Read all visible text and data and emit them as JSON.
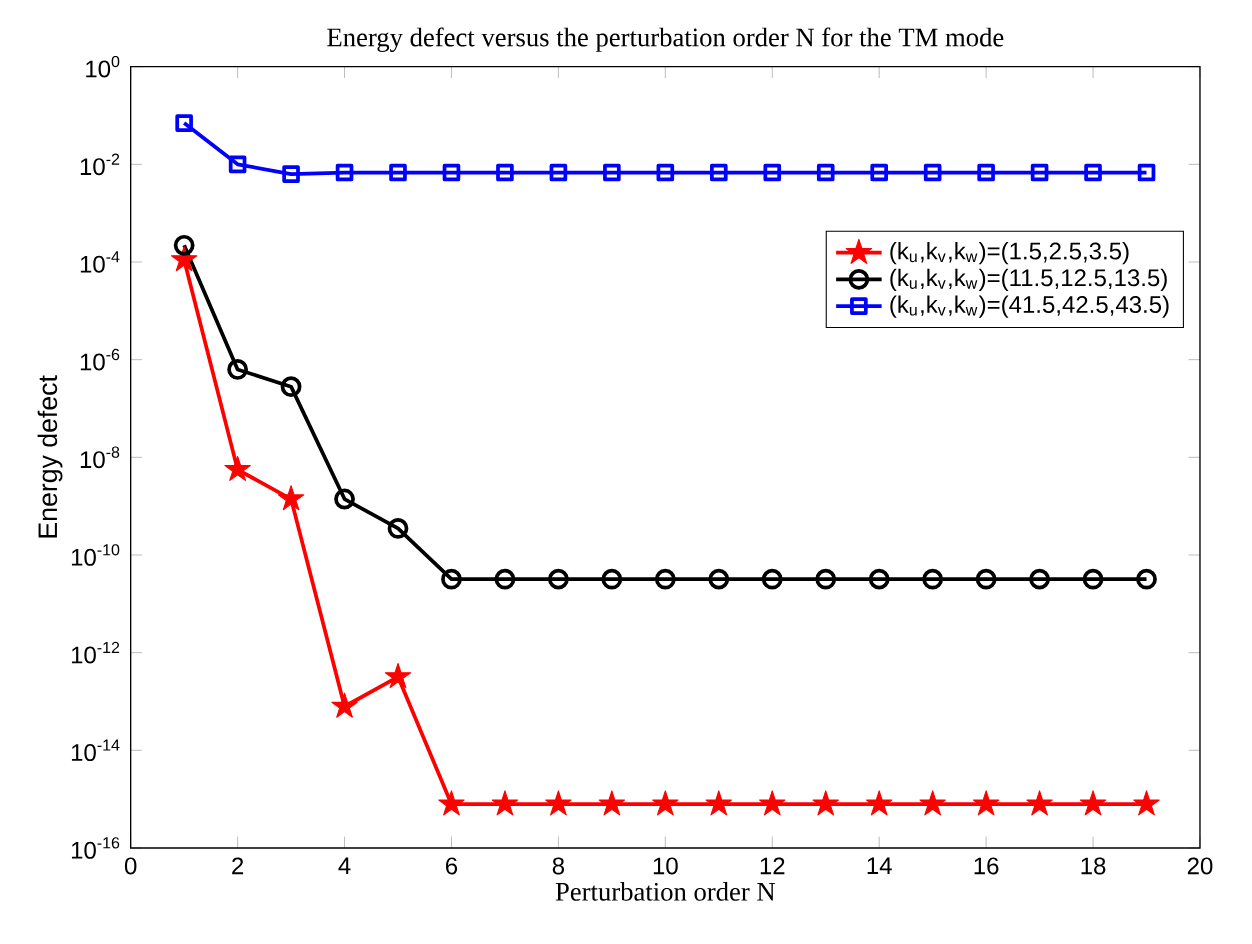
{
  "chart_data": {
    "type": "line",
    "title": "Energy defect versus the perturbation order N for the TM mode",
    "xlabel": "Perturbation order N",
    "ylabel": "Energy defect",
    "log": "y",
    "legend": "top right",
    "grid": false,
    "x": [
      1,
      2,
      3,
      4,
      5,
      6,
      7,
      8,
      9,
      10,
      11,
      12,
      13,
      14,
      15,
      16,
      17,
      18,
      19
    ],
    "xlim": [
      0,
      20
    ],
    "xticks": [
      0,
      2,
      4,
      6,
      8,
      10,
      12,
      14,
      16,
      18,
      20
    ],
    "ylim": [
      1e-16,
      1
    ],
    "yticks": [
      {
        "value": 1e-16,
        "label": "10$^{-16}$"
      },
      {
        "value": 1e-14,
        "label": "10$^{-14}$"
      },
      {
        "value": 1e-12,
        "label": "10$^{-12}$"
      },
      {
        "value": 1e-10,
        "label": "10$^{-10}$"
      },
      {
        "value": 1e-08,
        "label": "10$^{-8}$"
      },
      {
        "value": 1e-06,
        "label": "10$^{-6}$"
      },
      {
        "value": 0.0001,
        "label": "10$^{-4}$"
      },
      {
        "value": 0.01,
        "label": "10$^{-2}$"
      },
      {
        "value": 1,
        "label": "10$^{0}$"
      }
    ],
    "series": [
      {
        "name": "(k$_{u}$,k$_{v}$,k$_{w}$)=(1.5,2.5,3.5)",
        "color": "#ff0000",
        "marker": "star",
        "values": [
          0.00011,
          5.6e-09,
          1.4e-09,
          7.9e-14,
          3.2e-13,
          7.9e-16,
          7.9e-16,
          7.9e-16,
          7.9e-16,
          7.9e-16,
          7.9e-16,
          7.9e-16,
          7.9e-16,
          7.9e-16,
          7.9e-16,
          7.9e-16,
          7.9e-16,
          7.9e-16,
          7.9e-16
        ]
      },
      {
        "name": "(k$_{u}$,k$_{v}$,k$_{w}$)=(11.5,12.5,13.5)",
        "color": "#000000",
        "marker": "circle",
        "values": [
          0.00022,
          6.3e-07,
          2.8e-07,
          1.4e-09,
          3.5e-10,
          3.2e-11,
          3.2e-11,
          3.2e-11,
          3.2e-11,
          3.2e-11,
          3.2e-11,
          3.2e-11,
          3.2e-11,
          3.2e-11,
          3.2e-11,
          3.2e-11,
          3.2e-11,
          3.2e-11,
          3.2e-11
        ]
      },
      {
        "name": "(k$_{u}$,k$_{v}$,k$_{w}$)=(41.5,42.5,43.5)",
        "color": "#0000ff",
        "marker": "square",
        "values": [
          0.07,
          0.01,
          0.0063,
          0.0068,
          0.0068,
          0.0068,
          0.0068,
          0.0068,
          0.0068,
          0.0068,
          0.0068,
          0.0068,
          0.0068,
          0.0068,
          0.0068,
          0.0068,
          0.0068,
          0.0068,
          0.0068
        ]
      }
    ]
  }
}
